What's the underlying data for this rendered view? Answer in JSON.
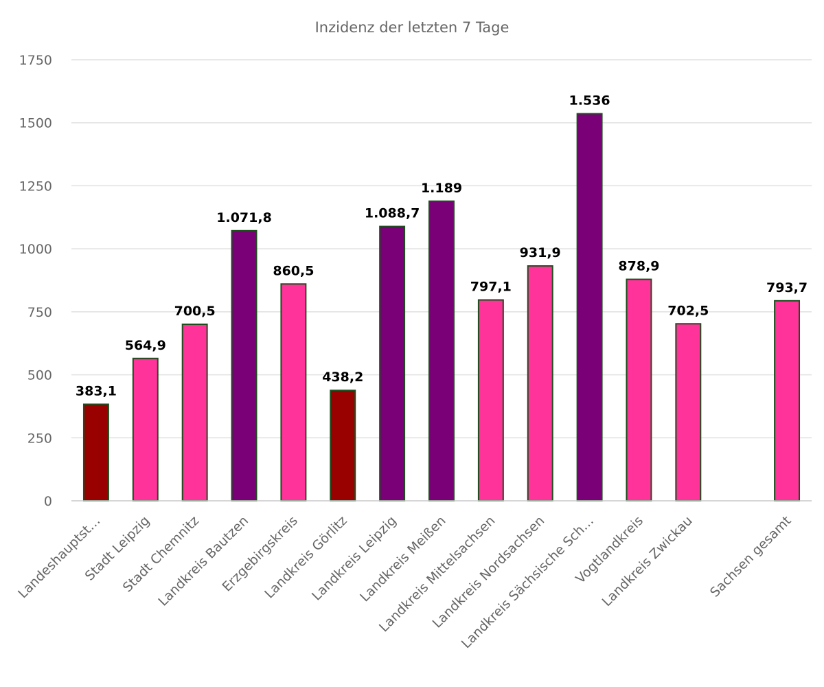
{
  "chart_data": {
    "type": "bar",
    "title": "Inzidenz der letzten 7 Tage",
    "xlabel": "",
    "ylabel": "",
    "ylim": [
      0,
      1750
    ],
    "yticks": [
      0,
      250,
      500,
      750,
      1000,
      1250,
      1500,
      1750
    ],
    "grid": true,
    "legend": "none",
    "categories": [
      "Landeshauptst…",
      "Stadt Leipzig",
      "Stadt Chemnitz",
      "Landkreis Bautzen",
      "Erzgebirgskreis",
      "Landkreis Görlitz",
      "Landkreis Leipzig",
      "Landkreis Meißen",
      "Landkreis Mittelsachsen",
      "Landkreis Nordsachsen",
      "Landkreis Sächsische Sch…",
      "Vogtlandkreis",
      "Landkreis Zwickau",
      "",
      "Sachsen gesamt"
    ],
    "values": [
      383.1,
      564.9,
      700.5,
      1071.8,
      860.5,
      438.2,
      1088.7,
      1189,
      797.1,
      931.9,
      1536,
      878.9,
      702.5,
      null,
      793.7
    ],
    "data_labels": [
      "383,1",
      "564,9",
      "700,5",
      "1.071,8",
      "860,5",
      "438,2",
      "1.088,7",
      "1.189",
      "797,1",
      "931,9",
      "1.536",
      "878,9",
      "702,5",
      "",
      "793,7"
    ],
    "colors": [
      "#990000",
      "#ff3399",
      "#ff3399",
      "#7a0077",
      "#ff3399",
      "#990000",
      "#7a0077",
      "#7a0077",
      "#ff3399",
      "#ff3399",
      "#7a0077",
      "#ff3399",
      "#ff3399",
      null,
      "#ff3399"
    ],
    "bar_outline_color": "#1e4d1e"
  }
}
